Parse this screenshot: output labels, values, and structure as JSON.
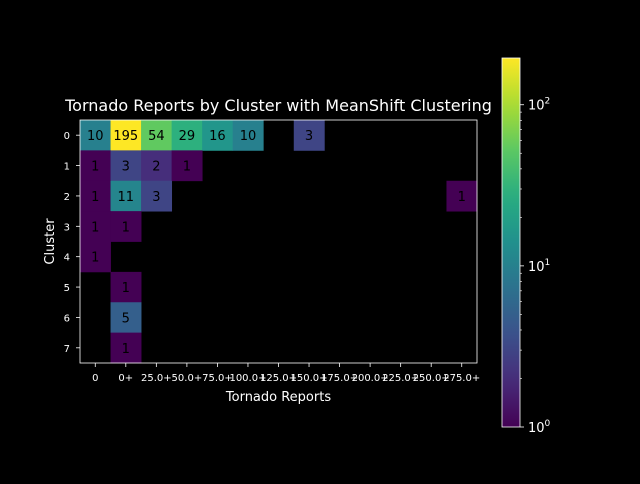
{
  "chart_data": {
    "type": "heatmap",
    "title": "Tornado Reports by Cluster with MeanShift Clustering",
    "xlabel": "Tornado Reports",
    "ylabel": "Cluster",
    "x_categories": [
      "0",
      "0+",
      "25.0+",
      "50.0+",
      "75.0+",
      "100.0+",
      "125.0+",
      "150.0+",
      "175.0+",
      "200.0+",
      "225.0+",
      "250.0+",
      "275.0+"
    ],
    "y_categories": [
      "0",
      "1",
      "2",
      "3",
      "4",
      "5",
      "6",
      "7"
    ],
    "values": [
      [
        10,
        195,
        54,
        29,
        16,
        10,
        null,
        3,
        null,
        null,
        null,
        null,
        null
      ],
      [
        1,
        3,
        2,
        1,
        null,
        null,
        null,
        null,
        null,
        null,
        null,
        null,
        null
      ],
      [
        1,
        11,
        3,
        null,
        null,
        null,
        null,
        null,
        null,
        null,
        null,
        null,
        1
      ],
      [
        1,
        1,
        null,
        null,
        null,
        null,
        null,
        null,
        null,
        null,
        null,
        null,
        null
      ],
      [
        1,
        null,
        null,
        null,
        null,
        null,
        null,
        null,
        null,
        null,
        null,
        null,
        null
      ],
      [
        null,
        1,
        null,
        null,
        null,
        null,
        null,
        null,
        null,
        null,
        null,
        null,
        null
      ],
      [
        null,
        5,
        null,
        null,
        null,
        null,
        null,
        null,
        null,
        null,
        null,
        null,
        null
      ],
      [
        null,
        1,
        null,
        null,
        null,
        null,
        null,
        null,
        null,
        null,
        null,
        null,
        null
      ]
    ],
    "colorbar": {
      "scale": "log",
      "colormap": "viridis",
      "range": [
        1,
        195
      ],
      "tick_labels": [
        {
          "base": "10",
          "exp": "0",
          "value": 1
        },
        {
          "base": "10",
          "exp": "1",
          "value": 10
        },
        {
          "base": "10",
          "exp": "2",
          "value": 100
        }
      ]
    },
    "grid": false,
    "colors": {
      "background": "#000000",
      "foreground": "#ffffff",
      "cell_text": "#000000",
      "empty_cell": "#000000"
    }
  }
}
